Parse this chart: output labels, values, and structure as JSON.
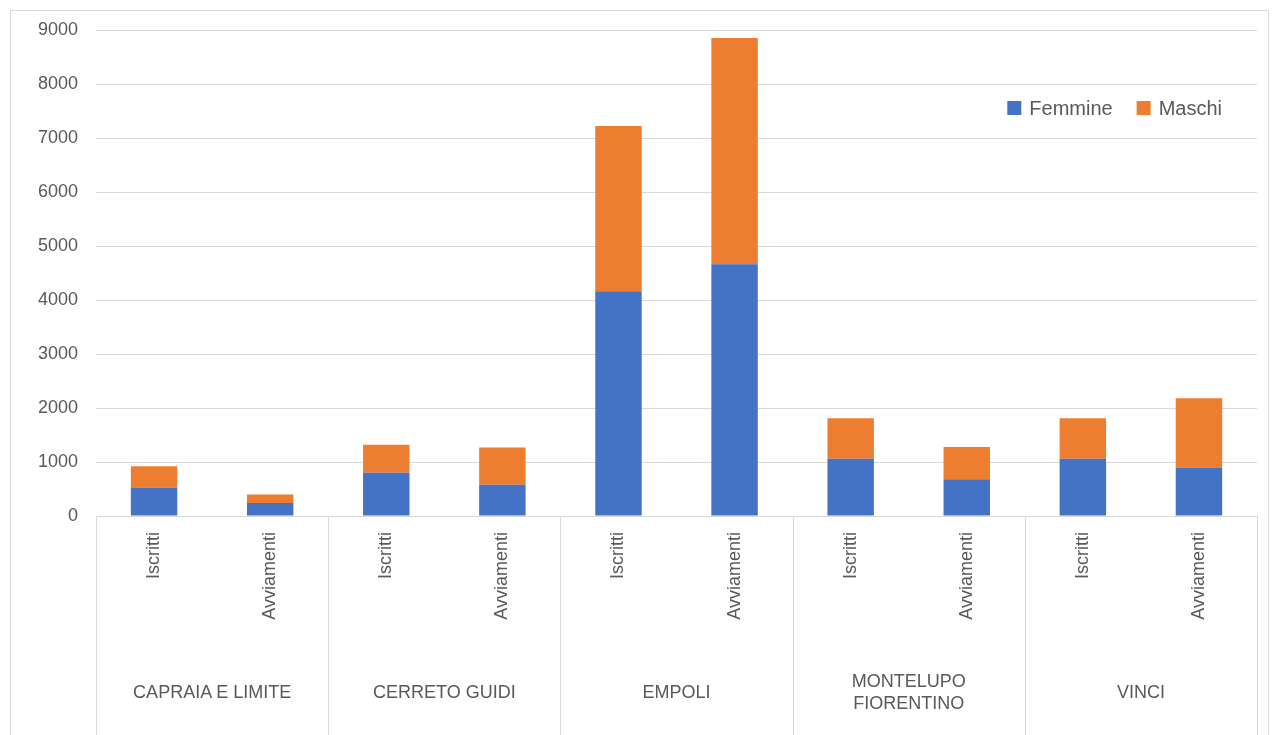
{
  "chart_data": {
    "type": "bar",
    "stacked": true,
    "categories": [
      "Iscritti",
      "Avviamenti",
      "Iscritti",
      "Avviamenti",
      "Iscritti",
      "Avviamenti",
      "Iscritti",
      "Avviamenti",
      "Iscritti",
      "Avviamenti"
    ],
    "annotations": [
      "CAPRAIA E LIMITE",
      "CERRETO GUIDI",
      "EMPOLI",
      "MONTELUPO FIORENTINO",
      "VINCI"
    ],
    "series": [
      {
        "name": "Femmine",
        "color": "#4472c4",
        "values": [
          530,
          240,
          800,
          580,
          4160,
          4660,
          1060,
          680,
          1060,
          900
        ]
      },
      {
        "name": "Maschi",
        "color": "#ed7d31",
        "values": [
          390,
          160,
          520,
          690,
          3060,
          4190,
          750,
          600,
          750,
          1280
        ]
      }
    ],
    "ylim": [
      0,
      9000
    ],
    "yticks": [
      0,
      1000,
      2000,
      3000,
      4000,
      5000,
      6000,
      7000,
      8000,
      9000
    ],
    "grid": "y",
    "legend": "top right"
  }
}
